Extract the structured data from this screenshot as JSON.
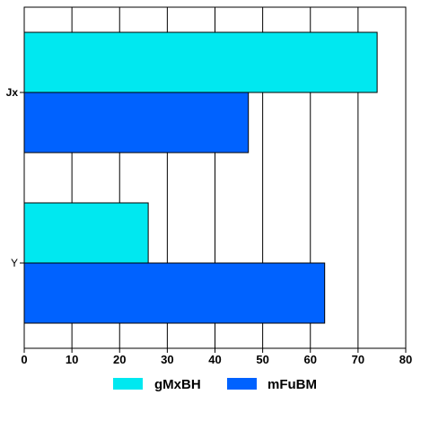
{
  "chart_data": {
    "type": "bar",
    "orientation": "horizontal",
    "title": "",
    "xlabel": "",
    "ylabel": "",
    "categories": [
      "Jx",
      "Y"
    ],
    "series": [
      {
        "name": "gMxBH",
        "values": [
          74,
          26
        ],
        "color": "#00e8f0"
      },
      {
        "name": "mFuBM",
        "values": [
          47,
          63
        ],
        "color": "#0062ff"
      }
    ],
    "xlim": [
      0,
      80
    ],
    "x_ticks": [
      0,
      10,
      20,
      30,
      40,
      50,
      60,
      70,
      80
    ],
    "x_tick_labels": [
      "0",
      "10",
      "20",
      "30",
      "40",
      "50",
      "60",
      "70",
      "80"
    ],
    "grid": true,
    "legend_position": "bottom"
  }
}
